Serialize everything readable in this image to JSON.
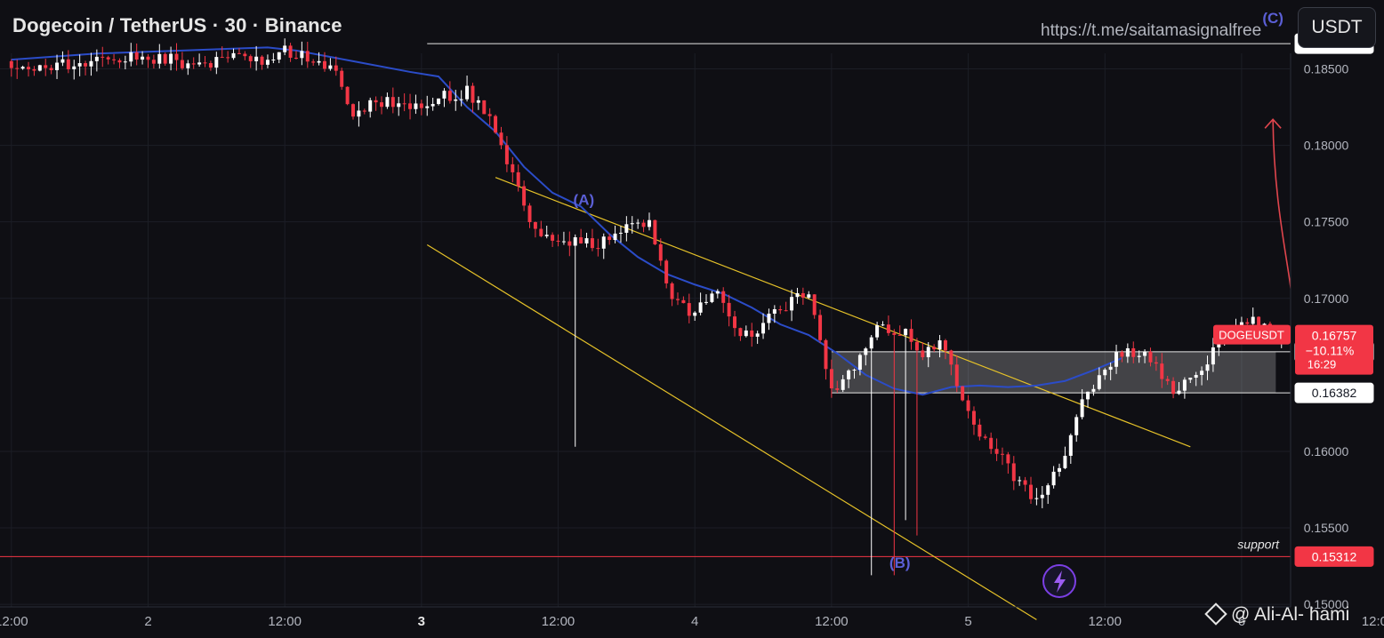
{
  "header": {
    "title": "Dogecoin / TetherUS · 30 · Binance",
    "link": "https://t.me/saitamasignalfree",
    "currency_button": "USDT"
  },
  "watermark": {
    "author": "@ Ali-Al-   hami"
  },
  "colors": {
    "background": "#0f0f14",
    "grid": "#1c1e26",
    "up_candle": "#ffffff",
    "down_candle": "#f23645",
    "ma_line": "#2b4cc8",
    "channel_lines": "#e6c229",
    "wave_labels": "#5b5fd6",
    "support_line": "#f23645",
    "arrow": "#e0454d"
  },
  "icons": {
    "bolt": "lightning-bolt-icon",
    "logo": "diamond-logo-icon"
  },
  "chart_data": {
    "type": "candlestick",
    "symbol": "DOGEUSDT",
    "y_axis": {
      "ticks": [
        "0.18500",
        "0.18000",
        "0.17500",
        "0.17000",
        "0.16000",
        "0.15500",
        "0.15000"
      ],
      "ylim": [
        0.1478,
        0.1895
      ]
    },
    "x_axis": {
      "ticks": [
        "12:00",
        "2",
        "12:00",
        "3",
        "12:00",
        "4",
        "12:00",
        "5",
        "12:00",
        "6",
        "12:00"
      ]
    },
    "price_levels": [
      {
        "label": "0.18665",
        "value": 0.18665,
        "style": "white"
      },
      {
        "label": "0.16651",
        "value": 0.16651,
        "style": "white"
      },
      {
        "label": "0.16382",
        "value": 0.16382,
        "style": "white"
      },
      {
        "label": "0.15312",
        "value": 0.15312,
        "style": "red"
      }
    ],
    "current_price": {
      "symbol_label": "DOGEUSDT",
      "price": "0.16757",
      "change": "−10.11%",
      "countdown": "16:29",
      "value": 0.16757
    },
    "support_label": "support",
    "waves": [
      {
        "label": "(A)",
        "time": 100.5,
        "price": 0.1761
      },
      {
        "label": "(B)",
        "time": 156,
        "price": 0.1524
      },
      {
        "label": "(C)",
        "time": 221.5,
        "price": 0.188
      }
    ],
    "guide_points": [
      0.1855,
      0.1849,
      0.1853,
      0.1852,
      0.1858,
      0.1858,
      0.1856,
      0.1857,
      0.1851,
      0.1855,
      0.1857,
      0.1854,
      0.1862,
      0.1858,
      0.1852,
      0.1822,
      0.1829,
      0.1826,
      0.1827,
      0.1833,
      0.1835,
      0.1815,
      0.1779,
      0.1741,
      0.1738,
      0.1738,
      0.1736,
      0.1751,
      0.1751,
      0.1696,
      0.1691,
      0.1706,
      0.1675,
      0.1683,
      0.1695,
      0.1703,
      0.1641,
      0.1655,
      0.168,
      0.168,
      0.1665,
      0.167,
      0.1623,
      0.1603,
      0.1585,
      0.1568,
      0.1589,
      0.163,
      0.1657,
      0.1667,
      0.1659,
      0.1638,
      0.1648,
      0.1673,
      0.1685,
      0.1682,
      0.1675
    ],
    "ma_points": [
      [
        0,
        0.1856
      ],
      [
        15,
        0.186
      ],
      [
        30,
        0.1862
      ],
      [
        45,
        0.1864
      ],
      [
        50,
        0.1862
      ],
      [
        60,
        0.1855
      ],
      [
        70,
        0.1848
      ],
      [
        75,
        0.1845
      ],
      [
        80,
        0.1825
      ],
      [
        85,
        0.1809
      ],
      [
        90,
        0.1786
      ],
      [
        95,
        0.1769
      ],
      [
        100,
        0.176
      ],
      [
        105,
        0.1742
      ],
      [
        110,
        0.1727
      ],
      [
        115,
        0.1716
      ],
      [
        120,
        0.1709
      ],
      [
        125,
        0.1703
      ],
      [
        130,
        0.1694
      ],
      [
        135,
        0.1683
      ],
      [
        140,
        0.1676
      ],
      [
        145,
        0.1664
      ],
      [
        150,
        0.165
      ],
      [
        155,
        0.1641
      ],
      [
        160,
        0.1637
      ],
      [
        165,
        0.1642
      ],
      [
        170,
        0.1643
      ],
      [
        175,
        0.1642
      ],
      [
        180,
        0.1643
      ],
      [
        185,
        0.1646
      ],
      [
        190,
        0.1653
      ],
      [
        195,
        0.1661
      ]
    ],
    "channel": {
      "upper": [
        [
          85,
          0.1779
        ],
        [
          207,
          0.1603
        ]
      ],
      "lower": [
        [
          73,
          0.1735
        ],
        [
          180,
          0.149
        ]
      ]
    },
    "zone": {
      "t1": 144,
      "t2": 222,
      "p_low": 0.16382,
      "p_high": 0.16651
    },
    "x_range": {
      "min": -2,
      "max": 241
    }
  }
}
